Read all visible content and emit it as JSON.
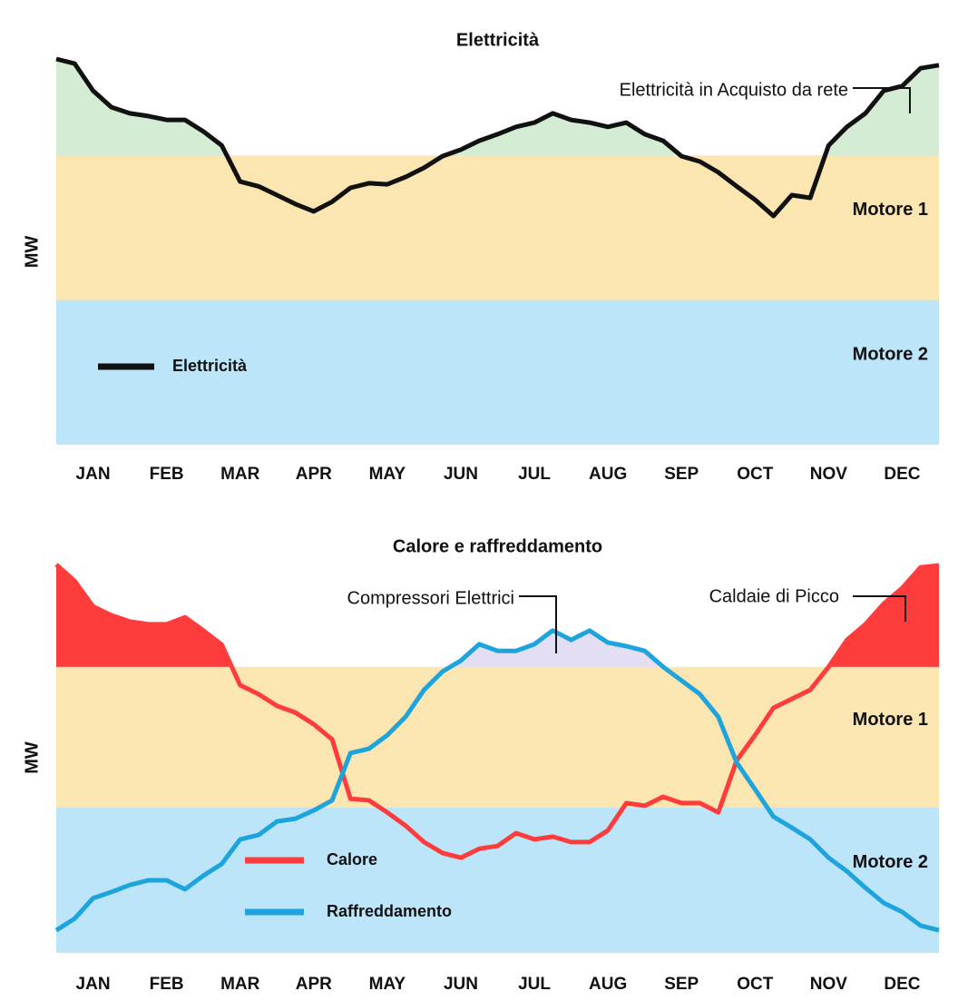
{
  "chart_data": [
    {
      "type": "area-line",
      "title": "Elettricità",
      "ylabel": "MW",
      "xlim": [
        0,
        12
      ],
      "ylim": [
        0,
        100
      ],
      "xticks": [
        {
          "value": 0.5,
          "label": "JAN"
        },
        {
          "value": 1.5,
          "label": "FEB"
        },
        {
          "value": 2.5,
          "label": "MAR"
        },
        {
          "value": 3.5,
          "label": "APR"
        },
        {
          "value": 4.5,
          "label": "MAY"
        },
        {
          "value": 5.5,
          "label": "JUN"
        },
        {
          "value": 6.5,
          "label": "JUL"
        },
        {
          "value": 7.5,
          "label": "AUG"
        },
        {
          "value": 8.5,
          "label": "SEP"
        },
        {
          "value": 9.5,
          "label": "OCT"
        },
        {
          "value": 10.5,
          "label": "NOV"
        },
        {
          "value": 11.5,
          "label": "DEC"
        }
      ],
      "bands": [
        {
          "name": "Motore 2",
          "from": 0,
          "to": 37.5,
          "color": "#bde5fa"
        },
        {
          "name": "Motore 1",
          "from": 37.5,
          "to": 75,
          "color": "#fbe5b0"
        }
      ],
      "annotations": [
        "Elettricità in Acquisto da rete"
      ],
      "legend": "lower left",
      "x": [
        0,
        0.25,
        0.5,
        0.75,
        1,
        1.25,
        1.5,
        1.75,
        2,
        2.25,
        2.5,
        2.75,
        3,
        3.25,
        3.5,
        3.75,
        4,
        4.25,
        4.5,
        4.75,
        5,
        5.25,
        5.5,
        5.75,
        6,
        6.25,
        6.5,
        6.75,
        7,
        7.25,
        7.5,
        7.75,
        8,
        8.25,
        8.5,
        8.75,
        9,
        9.25,
        9.5,
        9.75,
        10,
        10.25,
        10.5,
        10.75,
        11,
        11.25,
        11.5,
        11.75,
        12
      ],
      "series": [
        {
          "name": "Elettricità",
          "color": "#111111",
          "fill": "#d3ecd3",
          "values": [
            100,
            98.8,
            91.8,
            87.5,
            85.9,
            85.2,
            84.2,
            84.2,
            81.2,
            77.6,
            68.2,
            67,
            64.7,
            62.4,
            60.5,
            63,
            66.6,
            67.8,
            67.5,
            69.4,
            71.8,
            74.8,
            76.5,
            78.8,
            80.5,
            82.4,
            83.5,
            85.9,
            84.2,
            83.5,
            82.4,
            83.5,
            80.5,
            78.8,
            74.8,
            73.4,
            70.6,
            67,
            63.5,
            59.3,
            64.7,
            64,
            77.6,
            82.4,
            85.9,
            91.8,
            93,
            97.6,
            98.4
          ]
        }
      ]
    },
    {
      "type": "area-line",
      "title": "Calore e raffreddamento",
      "ylabel": "MW",
      "xlim": [
        0,
        12
      ],
      "ylim": [
        0,
        100
      ],
      "xticks": [
        {
          "value": 0.5,
          "label": "JAN"
        },
        {
          "value": 1.5,
          "label": "FEB"
        },
        {
          "value": 2.5,
          "label": "MAR"
        },
        {
          "value": 3.5,
          "label": "APR"
        },
        {
          "value": 4.5,
          "label": "MAY"
        },
        {
          "value": 5.5,
          "label": "JUN"
        },
        {
          "value": 6.5,
          "label": "JUL"
        },
        {
          "value": 7.5,
          "label": "AUG"
        },
        {
          "value": 8.5,
          "label": "SEP"
        },
        {
          "value": 9.5,
          "label": "OCT"
        },
        {
          "value": 10.5,
          "label": "NOV"
        },
        {
          "value": 11.5,
          "label": "DEC"
        }
      ],
      "bands": [
        {
          "name": "Motore 2",
          "from": 0,
          "to": 37.2,
          "color": "#bde5fa"
        },
        {
          "name": "Motore 1",
          "from": 37.2,
          "to": 73.3,
          "color": "#fbe5b0"
        }
      ],
      "annotations": [
        "Compressori Elettrici",
        "Caldaie di Picco"
      ],
      "legend": "lower left",
      "x": [
        0,
        0.25,
        0.5,
        0.75,
        1,
        1.25,
        1.5,
        1.75,
        2,
        2.25,
        2.5,
        2.75,
        3,
        3.25,
        3.5,
        3.75,
        4,
        4.25,
        4.5,
        4.75,
        5,
        5.25,
        5.5,
        5.75,
        6,
        6.25,
        6.5,
        6.75,
        7,
        7.25,
        7.5,
        7.75,
        8,
        8.25,
        8.5,
        8.75,
        9,
        9.25,
        9.5,
        9.75,
        10,
        10.25,
        10.5,
        10.75,
        11,
        11.25,
        11.5,
        11.75,
        12
      ],
      "series": [
        {
          "name": "Calore",
          "color": "#ff3c3c",
          "fill": "#ff3c3c",
          "values": [
            99.5,
            95.3,
            88.8,
            86.5,
            84.9,
            84.2,
            84.2,
            86,
            82.6,
            79,
            68.6,
            66.3,
            63.3,
            61.6,
            58.6,
            54.7,
            39.5,
            39.1,
            36,
            32.6,
            28.4,
            25.6,
            24.4,
            26.7,
            27.4,
            30.7,
            29.1,
            29.8,
            28.4,
            28.4,
            31.4,
            38.4,
            37.7,
            40,
            38.4,
            38.4,
            36,
            49.3,
            55.8,
            62.8,
            65.1,
            67.4,
            73.3,
            80.2,
            84.2,
            89.5,
            93.5,
            98.8,
            99.3
          ]
        },
        {
          "name": "Raffreddamento",
          "color": "#1ea4dd",
          "fill": "#e4def4",
          "values": [
            5.8,
            8.8,
            14,
            15.6,
            17.4,
            18.6,
            18.6,
            16.3,
            19.8,
            22.8,
            29.1,
            30.2,
            33.7,
            34.4,
            36.5,
            39.1,
            51.2,
            52.3,
            55.8,
            60.5,
            67.4,
            72.1,
            74.9,
            79.1,
            77.4,
            77.4,
            79.1,
            82.6,
            80.2,
            82.6,
            79.5,
            78.6,
            77.4,
            73.3,
            69.8,
            66.3,
            60.5,
            48.8,
            41.9,
            34.9,
            32.1,
            29.1,
            24.4,
            20.9,
            16.7,
            12.8,
            10.5,
            7,
            5.8
          ]
        }
      ]
    }
  ]
}
